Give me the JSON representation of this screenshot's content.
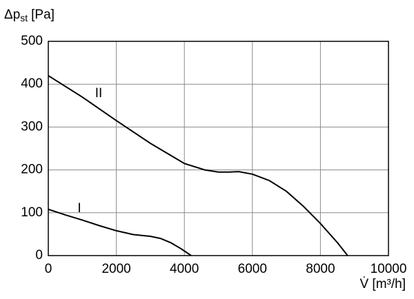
{
  "chart_data": {
    "type": "line",
    "y_label": {
      "main": "Δp",
      "sub": "st",
      "unit": "[Pa]"
    },
    "x_label": "V̇ [m³/h]",
    "xlim": [
      0,
      10000
    ],
    "xticks": [
      0,
      2000,
      4000,
      6000,
      8000,
      10000
    ],
    "ylim": [
      0,
      500
    ],
    "yticks": [
      0,
      100,
      200,
      300,
      400,
      500
    ],
    "grid": true,
    "series": [
      {
        "name": "I",
        "color": "#000000",
        "x": [
          0,
          500,
          1000,
          1500,
          2000,
          2500,
          3000,
          3300,
          3600,
          3900,
          4200
        ],
        "values": [
          108,
          95,
          83,
          70,
          58,
          49,
          45,
          40,
          30,
          16,
          0
        ]
      },
      {
        "name": "II",
        "color": "#000000",
        "x": [
          0,
          1000,
          2000,
          3000,
          4000,
          4600,
          5000,
          5300,
          5600,
          6000,
          6500,
          7000,
          7500,
          8000,
          8500,
          8800
        ],
        "values": [
          420,
          370,
          315,
          262,
          215,
          200,
          195,
          195,
          196,
          190,
          175,
          150,
          115,
          75,
          30,
          0
        ]
      }
    ]
  }
}
